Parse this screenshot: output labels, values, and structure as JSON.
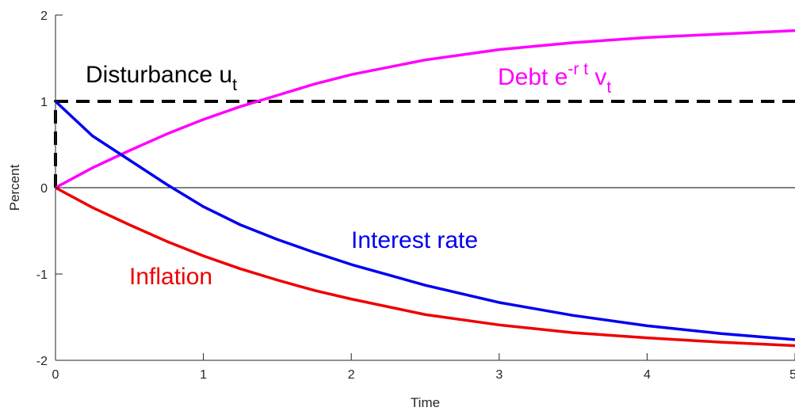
{
  "chart_data": {
    "type": "line",
    "xlabel": "Time",
    "ylabel": "Percent",
    "xlim": [
      0,
      5
    ],
    "ylim": [
      -2,
      2
    ],
    "xticks": [
      0,
      1,
      2,
      3,
      4,
      5
    ],
    "yticks": [
      -2,
      -1,
      0,
      1,
      2
    ],
    "xtick_labels": [
      "0",
      "1",
      "2",
      "3",
      "4",
      "5"
    ],
    "ytick_labels": [
      "-2",
      "-1",
      "0",
      "1",
      "2"
    ],
    "grid": false,
    "zero_line": true,
    "series": [
      {
        "key": "disturbance",
        "color": "#000000",
        "style": "dashed",
        "x": [
          0,
          0,
          5
        ],
        "y": [
          0,
          1,
          1
        ]
      },
      {
        "key": "debt",
        "color": "#ff00ff",
        "style": "solid",
        "x": [
          0,
          0.25,
          0.5,
          0.75,
          1,
          1.25,
          1.5,
          1.75,
          2,
          2.5,
          3,
          3.5,
          4,
          4.5,
          5
        ],
        "y": [
          0,
          0.23,
          0.43,
          0.62,
          0.79,
          0.94,
          1.07,
          1.2,
          1.31,
          1.48,
          1.6,
          1.68,
          1.74,
          1.78,
          1.82
        ]
      },
      {
        "key": "interest",
        "color": "#0000ee",
        "style": "solid",
        "x": [
          0,
          0.25,
          0.5,
          0.75,
          1,
          1.25,
          1.5,
          1.75,
          2,
          2.5,
          3,
          3.5,
          4,
          4.5,
          5
        ],
        "y": [
          1,
          0.6,
          0.32,
          0.04,
          -0.22,
          -0.43,
          -0.6,
          -0.75,
          -0.89,
          -1.13,
          -1.33,
          -1.48,
          -1.6,
          -1.69,
          -1.76
        ]
      },
      {
        "key": "inflation",
        "color": "#ee0000",
        "style": "solid",
        "x": [
          0,
          0.25,
          0.5,
          0.75,
          1,
          1.25,
          1.5,
          1.75,
          2,
          2.5,
          3,
          3.5,
          4,
          4.5,
          5
        ],
        "y": [
          0,
          -0.23,
          -0.43,
          -0.62,
          -0.79,
          -0.94,
          -1.07,
          -1.19,
          -1.29,
          -1.47,
          -1.59,
          -1.68,
          -1.74,
          -1.79,
          -1.83
        ]
      }
    ],
    "annotations": [
      {
        "key": "disturbance",
        "text": "Disturbance u",
        "subscript": "t",
        "color": "#000000"
      },
      {
        "key": "debt",
        "text": "Debt e",
        "superscript": "-r t",
        "text2": " v",
        "subscript": "t",
        "color": "#ff00ff"
      },
      {
        "key": "interest",
        "text": "Interest rate",
        "color": "#0000ee"
      },
      {
        "key": "inflation",
        "text": "Inflation",
        "color": "#ee0000"
      }
    ]
  }
}
